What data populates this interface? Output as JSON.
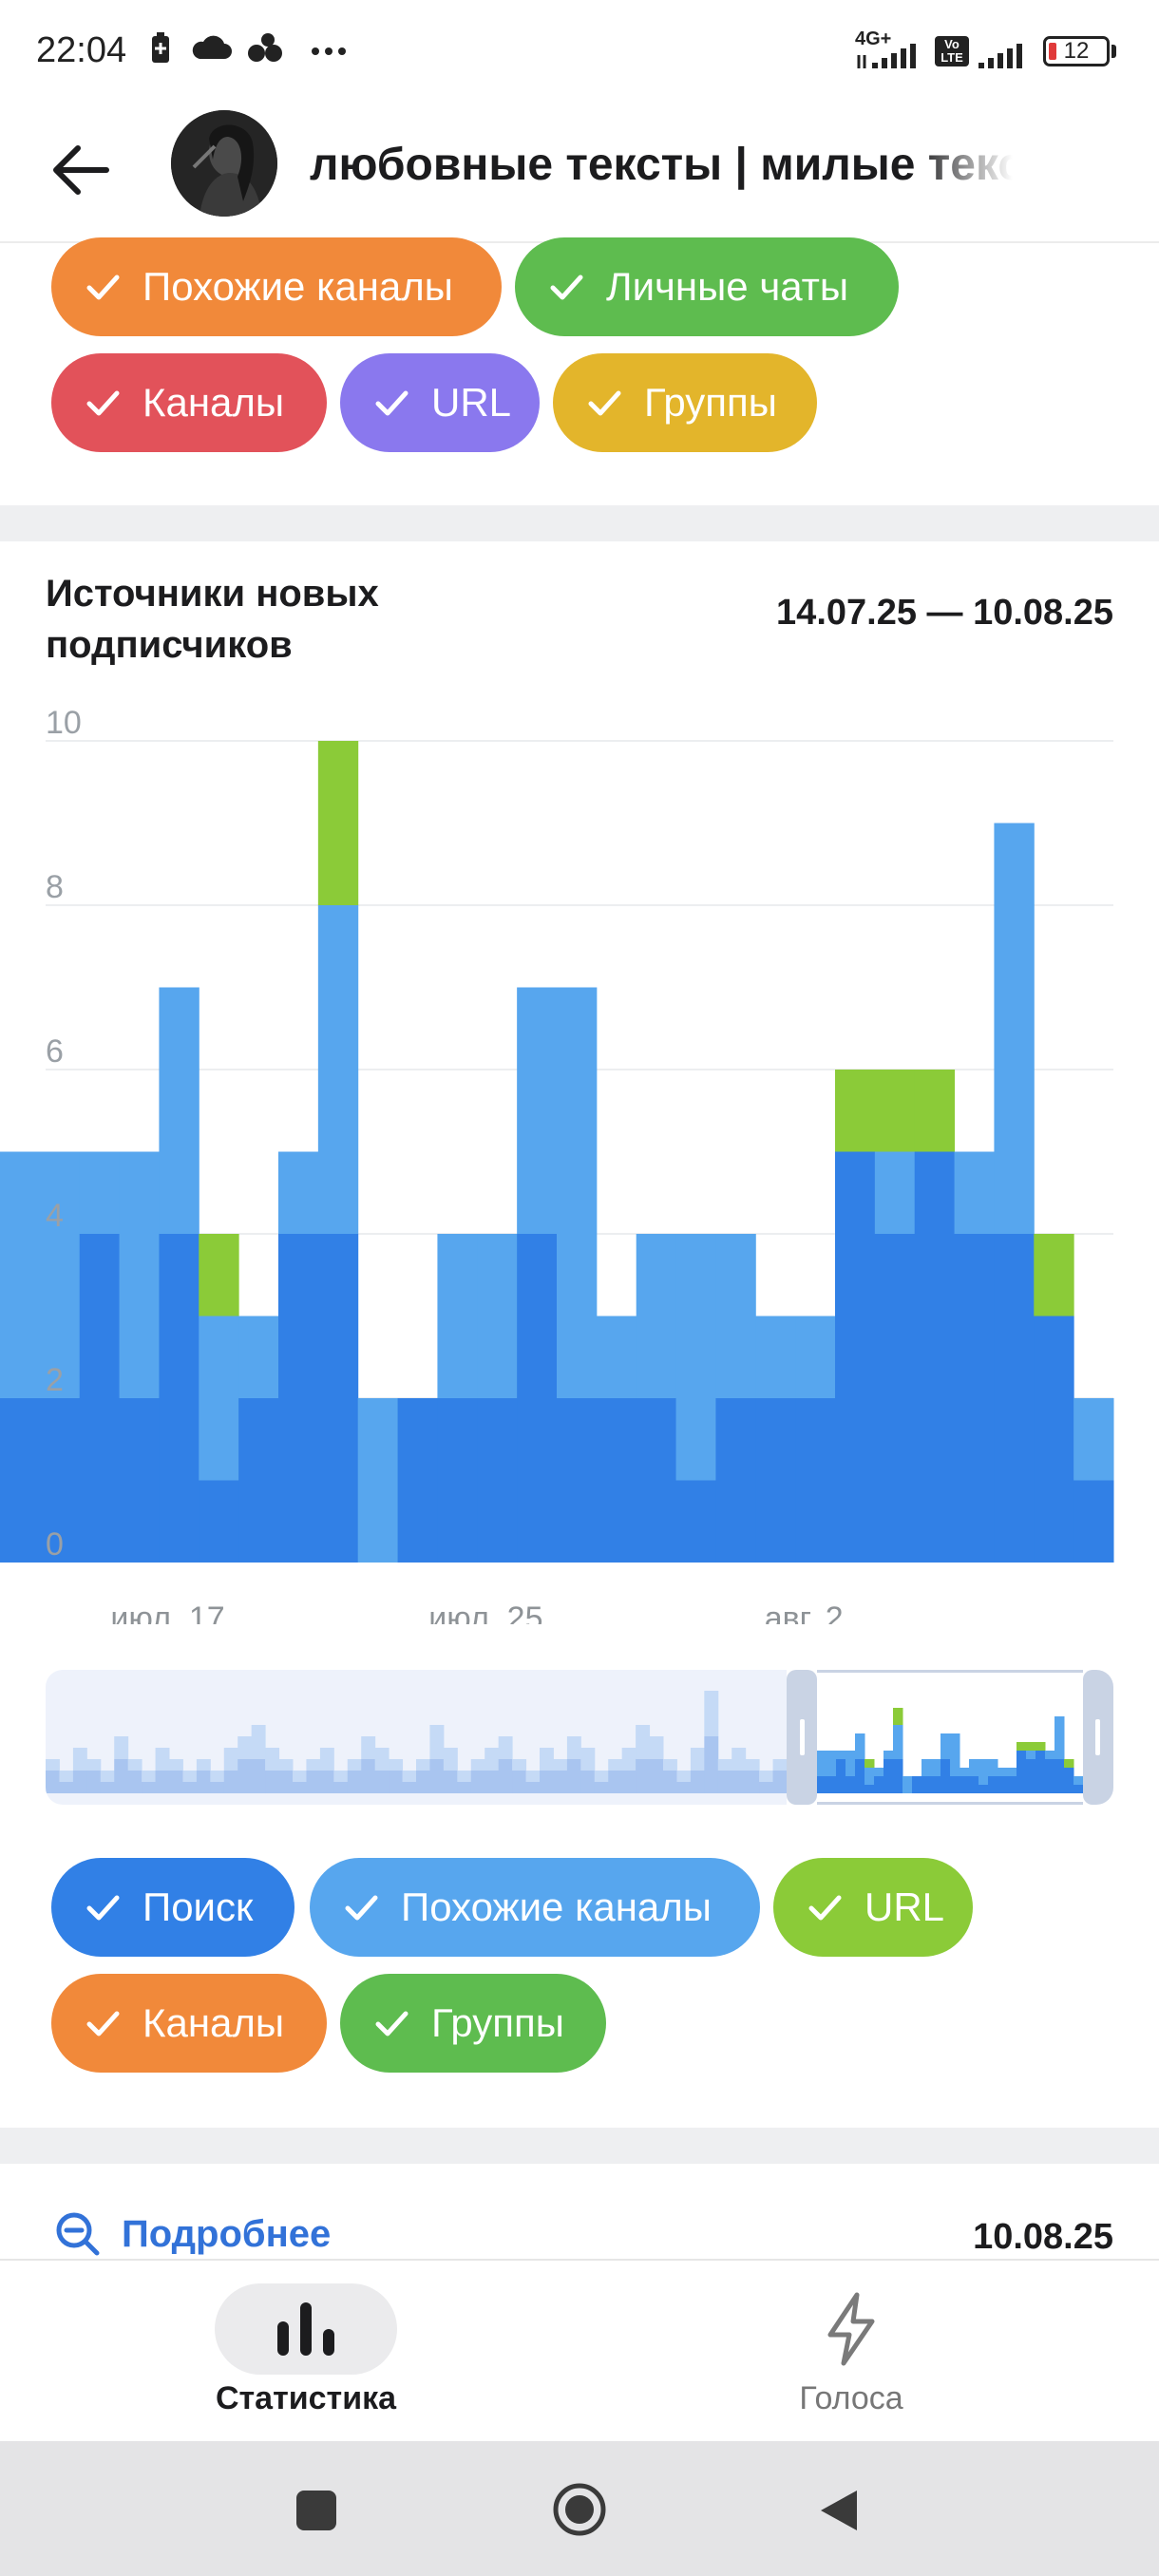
{
  "status_bar": {
    "time": "22:04",
    "network": "4G+",
    "volte": "Vo LTE",
    "battery": "12"
  },
  "header": {
    "title": "любовные тексты | милые тексты"
  },
  "top_filters": [
    {
      "label": "Похожие каналы",
      "color": "#f1893a"
    },
    {
      "label": "Личные чаты",
      "color": "#5ebc4f"
    },
    {
      "label": "Каналы",
      "color": "#e2525a"
    },
    {
      "label": "URL",
      "color": "#8a78ee"
    },
    {
      "label": "Группы",
      "color": "#e3b52b"
    }
  ],
  "chart": {
    "title": "Источники новых подписчиков",
    "date_range": "14.07.25 — 10.08.25"
  },
  "chart_data": {
    "type": "bar",
    "stacked": true,
    "ylim": [
      0,
      10
    ],
    "yticks": [
      "0",
      "2",
      "4",
      "6",
      "8",
      "10"
    ],
    "xticks": [
      "июл. 17",
      "июл. 25",
      "авг. 2"
    ],
    "grid": true,
    "legend": "bottom",
    "categories": [
      "14.07",
      "15.07",
      "16.07",
      "17.07",
      "18.07",
      "19.07",
      "20.07",
      "21.07",
      "22.07",
      "23.07",
      "24.07",
      "25.07",
      "26.07",
      "27.07",
      "28.07",
      "29.07",
      "30.07",
      "31.07",
      "01.08",
      "02.08",
      "03.08",
      "04.08",
      "05.08",
      "06.08",
      "07.08",
      "08.08",
      "09.08",
      "10.08"
    ],
    "series": [
      {
        "name": "Поиск",
        "color": "#3180e6",
        "values": [
          2,
          2,
          4,
          2,
          4,
          1,
          2,
          4,
          4,
          0,
          2,
          2,
          2,
          4,
          2,
          2,
          2,
          1,
          2,
          2,
          2,
          5,
          4,
          5,
          4,
          4,
          3,
          1
        ]
      },
      {
        "name": "Похожие каналы",
        "color": "#57a6ee",
        "values": [
          3,
          3,
          1,
          3,
          3,
          2,
          1,
          1,
          4,
          2,
          0,
          2,
          2,
          3,
          5,
          1,
          2,
          3,
          2,
          1,
          1,
          0,
          1,
          0,
          1,
          5,
          0,
          1
        ]
      },
      {
        "name": "URL",
        "color": "#8bcb38",
        "values": [
          0,
          0,
          0,
          0,
          0,
          1,
          0,
          0,
          2,
          0,
          0,
          0,
          0,
          0,
          0,
          0,
          0,
          0,
          0,
          0,
          0,
          1,
          1,
          1,
          0,
          0,
          1,
          0
        ]
      }
    ]
  },
  "legend": [
    {
      "label": "Поиск",
      "color": "#3180e6"
    },
    {
      "label": "Похожие каналы",
      "color": "#57a6ee"
    },
    {
      "label": "URL",
      "color": "#8bcb38"
    },
    {
      "label": "Каналы",
      "color": "#f1893a"
    },
    {
      "label": "Группы",
      "color": "#5ebc4f"
    }
  ],
  "bottom": {
    "link": "Подробнее",
    "date": "10.08.25"
  },
  "bottom_nav": {
    "stats": "Статистика",
    "votes": "Голоса"
  }
}
